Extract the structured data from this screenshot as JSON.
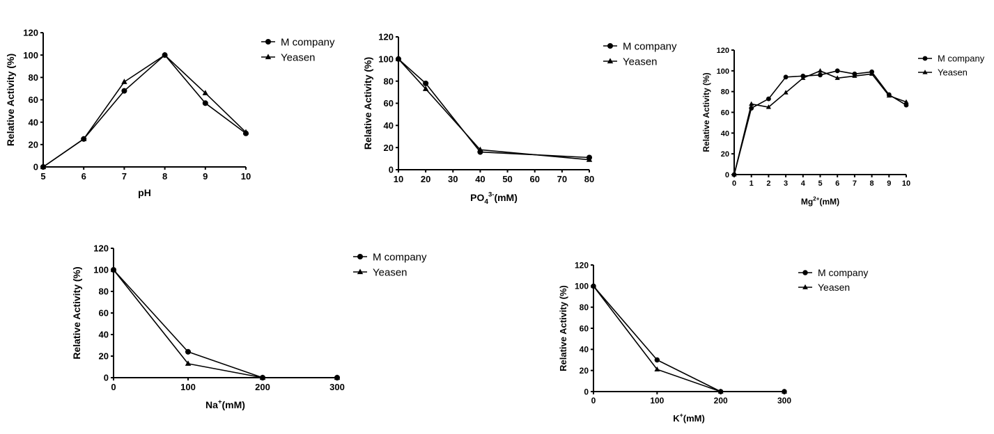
{
  "chart_data": [
    {
      "type": "line",
      "xlabel": "pH",
      "ylabel": "Relative Activity (%)",
      "xlim": [
        5,
        10
      ],
      "ylim": [
        0,
        120
      ],
      "xticks": [
        5,
        6,
        7,
        8,
        9,
        10
      ],
      "yticks": [
        0,
        20,
        40,
        60,
        80,
        100,
        120
      ],
      "legend_position": "top-right outside",
      "series": [
        {
          "name": "M company",
          "marker": "circle",
          "x": [
            5,
            6,
            7,
            8,
            9,
            10
          ],
          "y": [
            0,
            25,
            68,
            100,
            57,
            30
          ]
        },
        {
          "name": "Yeasen",
          "marker": "triangle",
          "x": [
            5,
            6,
            7,
            8,
            9,
            10
          ],
          "y": [
            0,
            25,
            76,
            100,
            66,
            31
          ]
        }
      ]
    },
    {
      "type": "line",
      "xlabel": "PO",
      "xlabel_sub": "4",
      "xlabel_sup": "3-",
      "xlabel_suffix": "(mM)",
      "ylabel": "Relative Activity (%)",
      "xlim": [
        10,
        80
      ],
      "ylim": [
        0,
        120
      ],
      "xticks": [
        10,
        20,
        30,
        40,
        50,
        60,
        70,
        80
      ],
      "yticks": [
        0,
        20,
        40,
        60,
        80,
        100,
        120
      ],
      "legend_position": "top-right outside",
      "series": [
        {
          "name": "M company",
          "marker": "circle",
          "x": [
            10,
            20,
            40,
            80
          ],
          "y": [
            100,
            78,
            16,
            11
          ]
        },
        {
          "name": "Yeasen",
          "marker": "triangle",
          "x": [
            10,
            20,
            40,
            80
          ],
          "y": [
            100,
            73,
            18,
            9
          ]
        }
      ]
    },
    {
      "type": "line",
      "xlabel": "Mg",
      "xlabel_sub": "",
      "xlabel_sup": "2+",
      "xlabel_suffix": "(mM)",
      "ylabel": "Relative Activity (%)",
      "xlim": [
        0,
        10
      ],
      "ylim": [
        0,
        120
      ],
      "xticks": [
        0,
        1,
        2,
        3,
        4,
        5,
        6,
        7,
        8,
        9,
        10
      ],
      "yticks": [
        0,
        20,
        40,
        60,
        80,
        100,
        120
      ],
      "legend_position": "top-right outside",
      "series": [
        {
          "name": "M company",
          "marker": "circle",
          "x": [
            0,
            1,
            2,
            3,
            4,
            5,
            6,
            7,
            8,
            9,
            10
          ],
          "y": [
            0,
            64,
            73,
            94,
            95,
            96,
            100,
            97,
            99,
            77,
            67
          ]
        },
        {
          "name": "Yeasen",
          "marker": "triangle",
          "x": [
            0,
            1,
            2,
            3,
            4,
            5,
            6,
            7,
            8,
            9,
            10
          ],
          "y": [
            0,
            68,
            65,
            79,
            93,
            100,
            93,
            95,
            97,
            76,
            70
          ]
        }
      ]
    },
    {
      "type": "line",
      "xlabel": "Na",
      "xlabel_sub": "",
      "xlabel_sup": "+",
      "xlabel_suffix": "(mM)",
      "ylabel": "Relative Activity (%)",
      "xlim": [
        0,
        300
      ],
      "ylim": [
        0,
        120
      ],
      "xticks": [
        0,
        100,
        200,
        300
      ],
      "yticks": [
        0,
        20,
        40,
        60,
        80,
        100,
        120
      ],
      "legend_position": "top-right outside",
      "series": [
        {
          "name": "M company",
          "marker": "circle",
          "x": [
            0,
            100,
            200,
            300
          ],
          "y": [
            100,
            24,
            0,
            0
          ]
        },
        {
          "name": "Yeasen",
          "marker": "triangle",
          "x": [
            0,
            100,
            200,
            300
          ],
          "y": [
            100,
            13,
            0,
            0
          ]
        }
      ]
    },
    {
      "type": "line",
      "xlabel": "K",
      "xlabel_sub": "",
      "xlabel_sup": "+",
      "xlabel_suffix": "(mM)",
      "ylabel": "Relative Activity (%)",
      "xlim": [
        0,
        300
      ],
      "ylim": [
        0,
        120
      ],
      "xticks": [
        0,
        100,
        200,
        300
      ],
      "yticks": [
        0,
        20,
        40,
        60,
        80,
        100,
        120
      ],
      "legend_position": "top-right outside",
      "series": [
        {
          "name": "M company",
          "marker": "circle",
          "x": [
            0,
            100,
            200,
            300
          ],
          "y": [
            100,
            30,
            0,
            0
          ]
        },
        {
          "name": "Yeasen",
          "marker": "triangle",
          "x": [
            0,
            100,
            200,
            300
          ],
          "y": [
            100,
            21,
            0,
            0
          ]
        }
      ]
    }
  ]
}
